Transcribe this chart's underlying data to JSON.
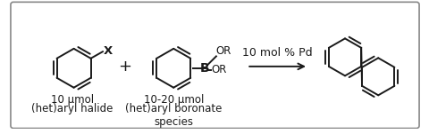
{
  "bg_color": "#ffffff",
  "border_color": "#888888",
  "text_color": "#1a1a1a",
  "ring_color": "#1a1a1a",
  "font_size_label": 8.5,
  "font_size_chem": 9.5,
  "font_size_arrow": 9.0,
  "label1": "10 μmol",
  "label1b": "(het)aryl halide",
  "label2": "10-20 μmol",
  "label2b": "(het)aryl boronate\nspecies",
  "arrow_label": "10 mol % Pd",
  "X_label": "X",
  "OR_label1": "OR",
  "OR_label2": "OR",
  "B_label": "B",
  "plus_sign": "+",
  "figsize": [
    4.81,
    1.51
  ],
  "dpi": 100
}
